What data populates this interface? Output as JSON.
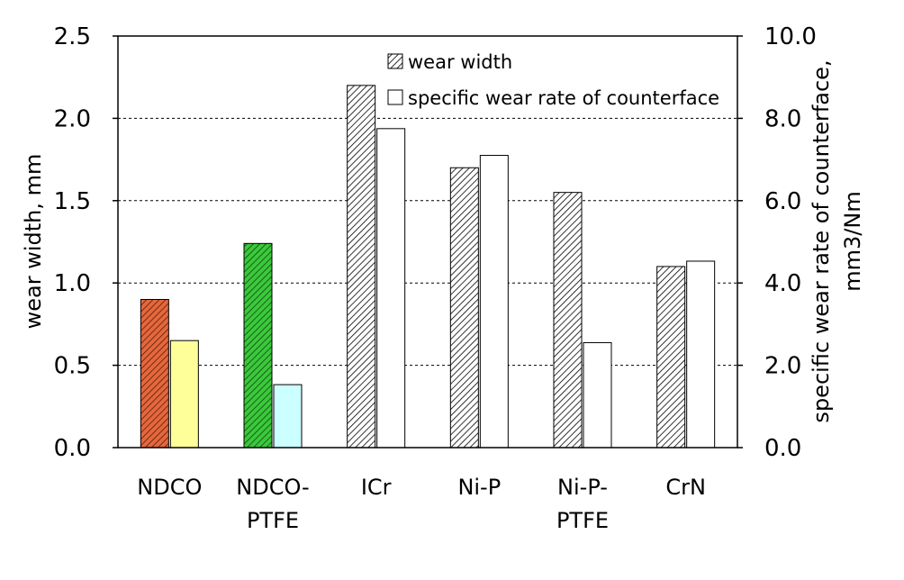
{
  "chart_data": {
    "type": "bar",
    "categories": [
      [
        "NDCO"
      ],
      [
        "NDCO-",
        "PTFE"
      ],
      [
        "ICr"
      ],
      [
        "Ni-P"
      ],
      [
        "Ni-P-",
        "PTFE"
      ],
      [
        "CrN"
      ]
    ],
    "series": [
      {
        "name": "wear width",
        "axis": "left",
        "values": [
          0.9,
          1.24,
          2.2,
          1.7,
          1.55,
          1.1
        ],
        "pattern": "hatched",
        "colors": [
          "#d4552e",
          "#2fb52f",
          "#ffffff",
          "#ffffff",
          "#ffffff",
          "#ffffff"
        ]
      },
      {
        "name": "specific wear rate of counterface",
        "axis": "right",
        "values": [
          2.6,
          1.53,
          7.75,
          7.1,
          2.55,
          4.53
        ],
        "pattern": "solid",
        "colors": [
          "#ffff99",
          "#ccffff",
          "#ffffff",
          "#ffffff",
          "#ffffff",
          "#ffffff"
        ]
      }
    ],
    "y_left": {
      "label": "wear width,  mm",
      "ylim": [
        0,
        2.5
      ],
      "ticks": [
        "0.0",
        "0.5",
        "1.0",
        "1.5",
        "2.0",
        "2.5"
      ]
    },
    "y_right": {
      "label_line1": "specific wear rate of counterface,",
      "label_line2": "mm3/Nm",
      "ylim": [
        0,
        10
      ],
      "ticks": [
        "0.0",
        "2.0",
        "4.0",
        "6.0",
        "8.0",
        "10.0"
      ]
    },
    "grid": "horizontal-dashed",
    "legend_placement": "top-center"
  }
}
